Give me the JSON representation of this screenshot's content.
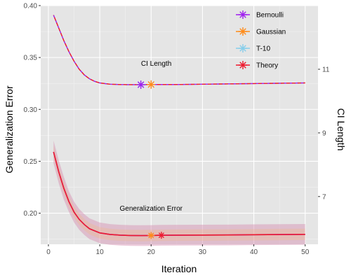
{
  "chart_data": {
    "type": "line",
    "xlabel": "Iteration",
    "ylabel": "Generalization Error",
    "y2label": "CI Length",
    "xlim": [
      1,
      50
    ],
    "ylim": [
      0.17,
      0.4
    ],
    "y2lim": [
      5.5,
      13.0
    ],
    "xticks": [
      0,
      10,
      20,
      30,
      40,
      50
    ],
    "yticks": [
      0.2,
      0.25,
      0.3,
      0.35,
      0.4
    ],
    "y2ticks": [
      7,
      9,
      11
    ],
    "grid": true,
    "legend_position": "top-right",
    "annotations": [
      {
        "text": "CI Length",
        "x": 21,
        "y": 0.342
      },
      {
        "text": "Generalization Error",
        "x": 20,
        "y": 0.2025
      }
    ],
    "series": [
      {
        "name": "Bernoulli",
        "color": "#a020f0",
        "marker_x": 18
      },
      {
        "name": "Gaussian",
        "color": "#ff8c1a",
        "marker_x": 20
      },
      {
        "name": "T-10",
        "color": "#87ceeb",
        "marker_x": 18
      },
      {
        "name": "Theory",
        "color": "#ee1b2f",
        "marker_x": 22
      }
    ],
    "generalization_error": {
      "x": [
        1,
        2,
        3,
        4,
        5,
        6,
        7,
        8,
        9,
        10,
        12,
        14,
        16,
        18,
        20,
        22,
        25,
        30,
        35,
        40,
        45,
        50
      ],
      "y": [
        0.259,
        0.24,
        0.224,
        0.211,
        0.201,
        0.194,
        0.189,
        0.185,
        0.183,
        0.181,
        0.1795,
        0.1788,
        0.1785,
        0.1784,
        0.1785,
        0.1787,
        0.1788,
        0.1789,
        0.179,
        0.1792,
        0.1794,
        0.1796
      ],
      "ci_half_width": [
        0.011,
        0.011,
        0.011,
        0.01,
        0.01,
        0.01,
        0.01,
        0.01,
        0.01,
        0.01,
        0.01,
        0.01,
        0.01,
        0.01,
        0.01,
        0.01,
        0.01,
        0.01,
        0.01,
        0.01,
        0.01,
        0.01
      ]
    },
    "ci_length": {
      "x": [
        1,
        2,
        3,
        4,
        5,
        6,
        7,
        8,
        9,
        10,
        12,
        14,
        16,
        18,
        20,
        22,
        25,
        30,
        35,
        40,
        45,
        50
      ],
      "y": [
        12.7,
        12.3,
        11.9,
        11.55,
        11.25,
        11.0,
        10.82,
        10.7,
        10.62,
        10.57,
        10.53,
        10.52,
        10.515,
        10.515,
        10.52,
        10.52,
        10.52,
        10.53,
        10.54,
        10.55,
        10.56,
        10.57
      ]
    }
  }
}
